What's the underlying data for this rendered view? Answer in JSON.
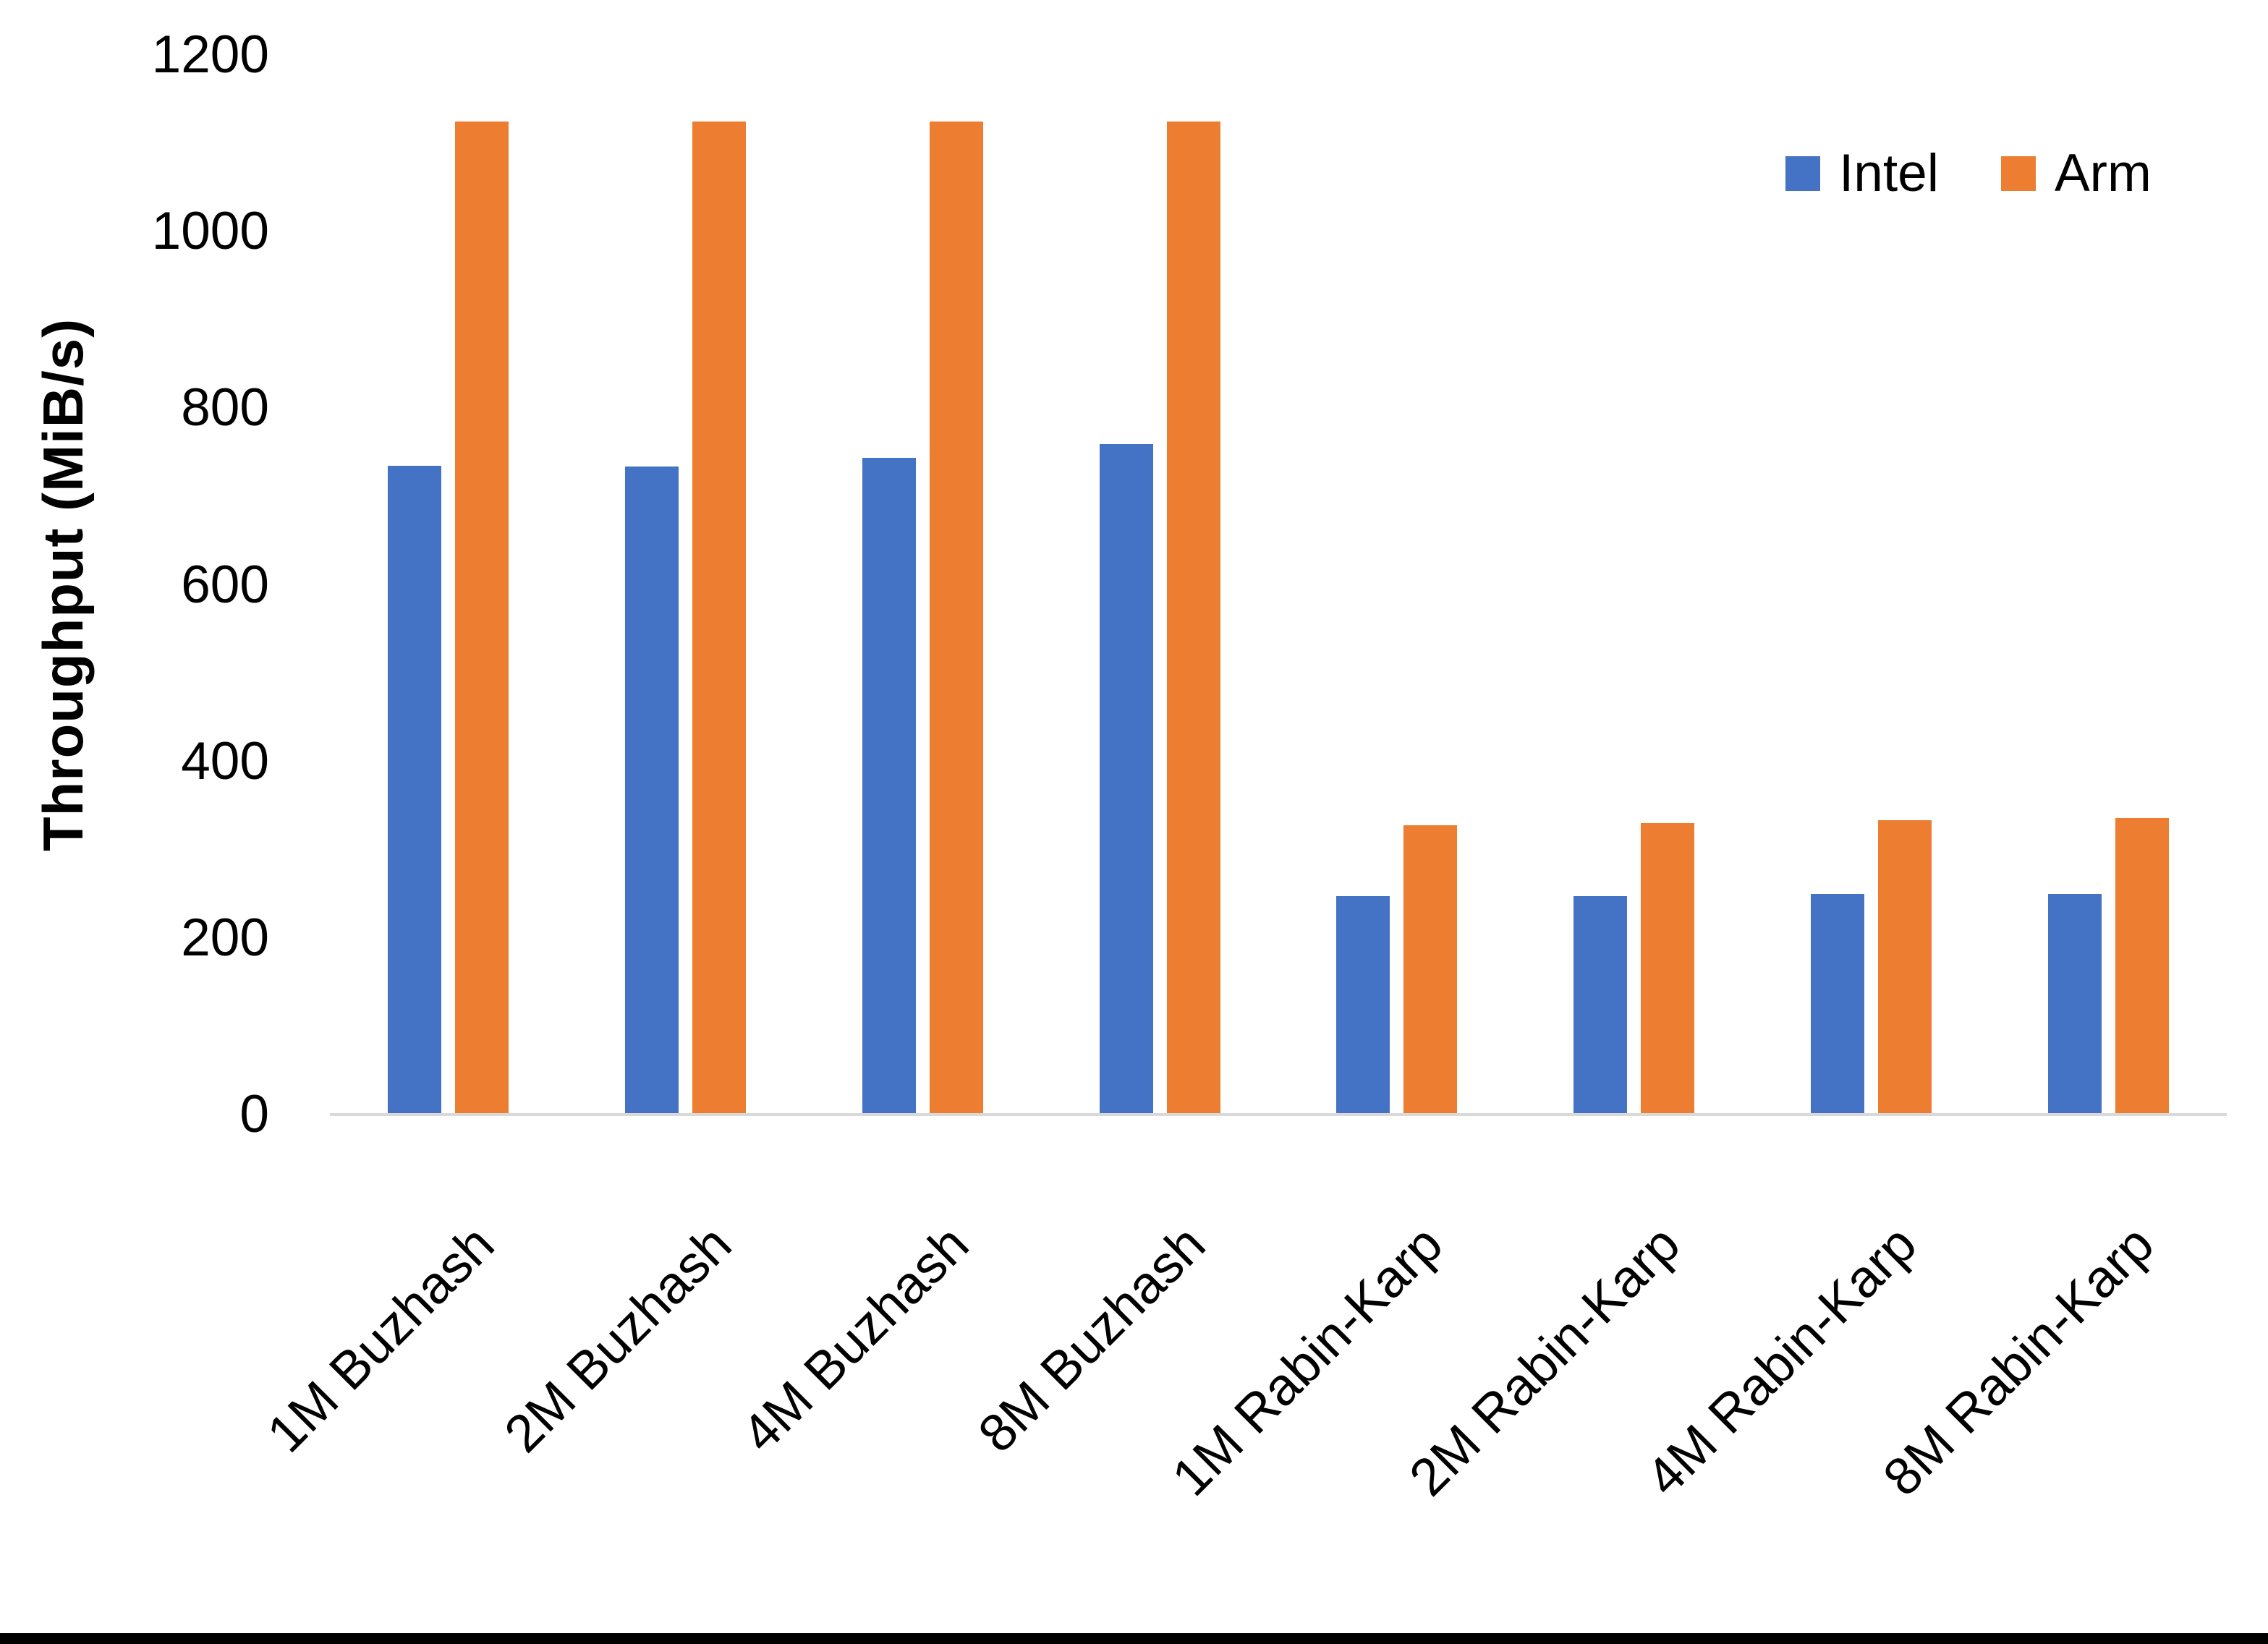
{
  "chart_data": {
    "type": "bar",
    "title": "",
    "xlabel": "",
    "ylabel": "Throughput (MiB/s)",
    "ylim": [
      0,
      1200
    ],
    "yticks": [
      0,
      200,
      400,
      600,
      800,
      1000,
      1200
    ],
    "grid": false,
    "legend_position": "top-right",
    "axis_line_color": "#D9D9D9",
    "categories": [
      "1M Buzhash",
      "2M Buzhash",
      "4M Buzhash",
      "8M Buzhash",
      "1M Rabin-Karp",
      "2M Rabin-Karp",
      "4M Rabin-Karp",
      "8M Rabin-Karp"
    ],
    "series": [
      {
        "name": "Intel",
        "color": "#4472C4",
        "values": [
          735,
          734,
          744,
          759,
          247,
          247,
          250,
          250
        ]
      },
      {
        "name": "Arm",
        "color": "#ED7D31",
        "values": [
          1125,
          1125,
          1125,
          1125,
          328,
          330,
          333,
          336
        ]
      }
    ]
  }
}
